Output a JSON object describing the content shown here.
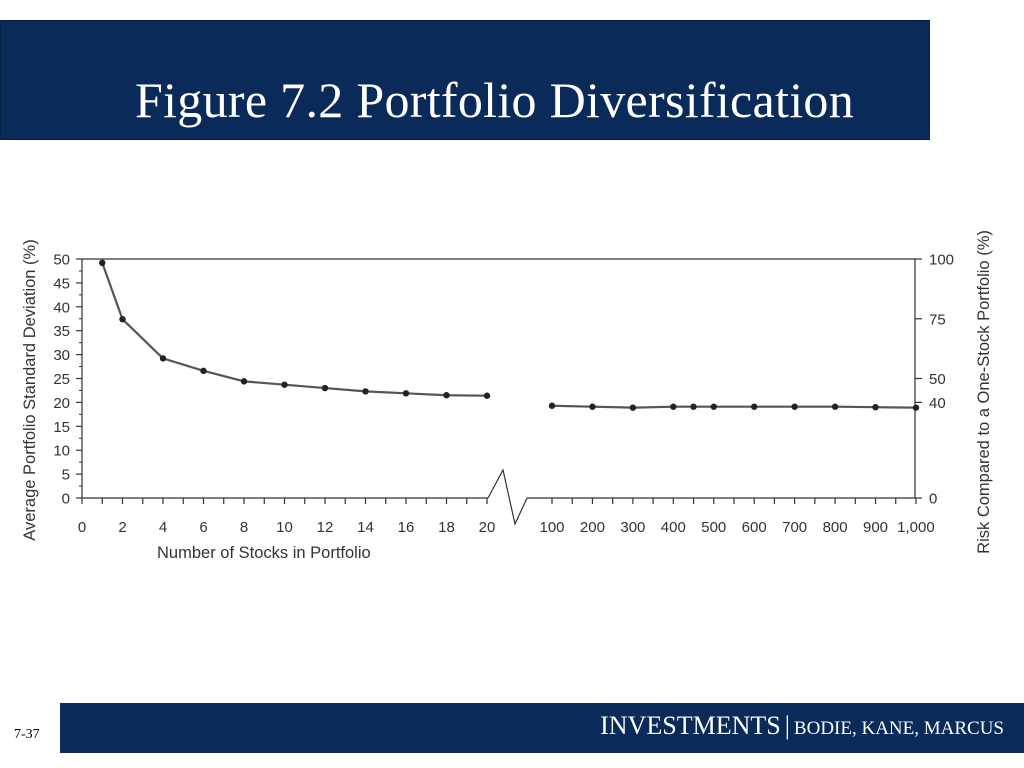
{
  "slide": {
    "title": "Figure 7.2 Portfolio Diversification",
    "page_number": "7-37",
    "footer": {
      "book": "INVESTMENTS",
      "separator": "|",
      "authors": "BODIE, KANE, MARCUS"
    },
    "colors": {
      "banner": "#0a2a5a",
      "line": "#555555",
      "marker": "#222222"
    }
  },
  "chart_data": {
    "type": "line",
    "title": "",
    "xlabel": "Number of Stocks in Portfolio",
    "ylabel_left": "Average Portfolio Standard Deviation (%)",
    "ylabel_right": "Risk Compared to a One-Stock Portfolio (%)",
    "ylim": [
      0,
      50
    ],
    "yticks_left": [
      "0",
      "5",
      "10",
      "15",
      "20",
      "25",
      "30",
      "35",
      "40",
      "45",
      "50"
    ],
    "yticks_right": [
      {
        "label": "0",
        "value": 0
      },
      {
        "label": "40",
        "value": 20
      },
      {
        "label": "50",
        "value": 25
      },
      {
        "label": "75",
        "value": 37.5
      },
      {
        "label": "100",
        "value": 50
      }
    ],
    "x_axis_break": true,
    "xticks_left": [
      "0",
      "2",
      "4",
      "6",
      "8",
      "10",
      "12",
      "14",
      "16",
      "18",
      "20"
    ],
    "xticks_right": [
      "100",
      "200",
      "300",
      "400",
      "500",
      "600",
      "700",
      "800",
      "900",
      "1,000"
    ],
    "grid": false,
    "series": [
      {
        "segment": "left",
        "x": [
          1,
          2,
          4,
          6,
          8,
          10,
          12,
          14,
          16,
          18,
          20
        ],
        "values": [
          49.2,
          37.4,
          29.2,
          26.6,
          24.4,
          23.7,
          23.0,
          22.3,
          21.9,
          21.5,
          21.4
        ]
      },
      {
        "segment": "right",
        "x": [
          100,
          200,
          300,
          400,
          450,
          500,
          600,
          700,
          800,
          900,
          1000
        ],
        "values": [
          19.3,
          19.1,
          18.9,
          19.1,
          19.1,
          19.1,
          19.1,
          19.1,
          19.1,
          19.0,
          18.9
        ]
      }
    ]
  }
}
